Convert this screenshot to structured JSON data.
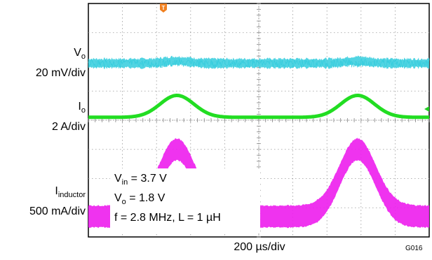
{
  "chart_data": {
    "type": "line",
    "title": "",
    "grid": true,
    "x_scale": "200 µs/div",
    "x_divisions": 10,
    "y_divisions": 8,
    "trigger_marker": "T",
    "series": [
      {
        "name_main": "V",
        "name_sub": "o",
        "scale": "20 mV/div",
        "color": "#33ccdd",
        "level_div": 2.05,
        "ripple_div": 0.18,
        "shape": "flat with noise, slight bumps at load pulses"
      },
      {
        "name_main": "I",
        "name_sub": "o",
        "scale": "2 A/div",
        "color": "#22dd22",
        "level_div": 3.9,
        "pulse_amplitude_div": 0.75,
        "pulse_centers_div": [
          2.6,
          7.9
        ],
        "pulse_width_div": 0.7
      },
      {
        "name_main": "I",
        "name_sub": "inductor",
        "scale": "500 mA/div",
        "color": "#ee22ee",
        "level_div": 7.3,
        "band_div": 0.7,
        "pulse_amplitude_div": 2.3,
        "pulse_centers_div": [
          2.6,
          7.9
        ],
        "pulse_width_div": 0.75
      }
    ],
    "annotations": {
      "vin_main": "V",
      "vin_sub": "in",
      "vin_value": " = 3.7 V",
      "vo_main": "V",
      "vo_sub": "o",
      "vo_value": " = 1.8 V",
      "freq_line": "f = 2.8 MHz, L = 1 µH"
    },
    "figure_id": "G016"
  }
}
